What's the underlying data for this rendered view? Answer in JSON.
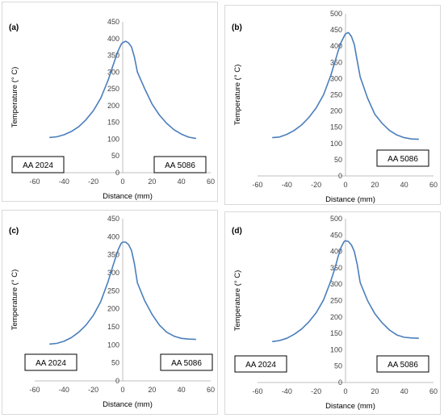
{
  "chart_data": [
    {
      "type": "line",
      "panel_label": "(a)",
      "xlabel": "Distance (mm)",
      "ylabel": "Temperature (° C)",
      "xlim": [
        -60,
        60
      ],
      "ylim": [
        0,
        450
      ],
      "xticks": [
        -60,
        -40,
        -20,
        0,
        20,
        40,
        60
      ],
      "yticks": [
        0,
        50,
        100,
        150,
        200,
        250,
        300,
        350,
        400,
        450
      ],
      "left_annotation": "AA 2024",
      "right_annotation": "AA 5086",
      "x": [
        -50,
        -45,
        -40,
        -35,
        -30,
        -25,
        -20,
        -15,
        -10,
        -7,
        -5,
        -3,
        -1,
        0,
        2,
        4,
        6,
        8,
        10,
        15,
        20,
        25,
        30,
        35,
        40,
        45,
        50
      ],
      "y": [
        105,
        107,
        113,
        123,
        137,
        158,
        185,
        222,
        275,
        315,
        340,
        365,
        383,
        388,
        392,
        387,
        375,
        345,
        300,
        250,
        205,
        172,
        147,
        128,
        115,
        106,
        102
      ]
    },
    {
      "type": "line",
      "panel_label": "(b)",
      "xlabel": "Distance (mm)",
      "ylabel": "Temperature (° C)",
      "xlim": [
        -60,
        60
      ],
      "ylim": [
        0,
        500
      ],
      "xticks": [
        -60,
        -40,
        -20,
        0,
        20,
        40,
        60
      ],
      "yticks": [
        0,
        50,
        100,
        150,
        200,
        250,
        300,
        350,
        400,
        450,
        500
      ],
      "left_annotation": "",
      "right_annotation": "AA 5086",
      "x": [
        -50,
        -45,
        -40,
        -35,
        -30,
        -25,
        -20,
        -15,
        -10,
        -7,
        -5,
        -3,
        -1,
        0,
        2,
        4,
        6,
        8,
        10,
        15,
        20,
        25,
        30,
        35,
        40,
        45,
        50
      ],
      "y": [
        118,
        120,
        128,
        140,
        157,
        180,
        210,
        250,
        310,
        355,
        385,
        412,
        430,
        438,
        442,
        430,
        405,
        355,
        305,
        240,
        190,
        162,
        140,
        126,
        118,
        114,
        113
      ]
    },
    {
      "type": "line",
      "panel_label": "(c)",
      "xlabel": "Distance (mm)",
      "ylabel": "Temperature (° C)",
      "xlim": [
        -60,
        60
      ],
      "ylim": [
        0,
        450
      ],
      "xticks": [
        -60,
        -40,
        -20,
        0,
        20,
        40,
        60
      ],
      "yticks": [
        0,
        50,
        100,
        150,
        200,
        250,
        300,
        350,
        400,
        450
      ],
      "left_annotation": "AA 2024",
      "right_annotation": "AA 5086",
      "x": [
        -50,
        -45,
        -40,
        -35,
        -30,
        -25,
        -20,
        -15,
        -10,
        -7,
        -5,
        -3,
        -1,
        0,
        2,
        4,
        6,
        8,
        10,
        15,
        20,
        25,
        30,
        35,
        40,
        45,
        50
      ],
      "y": [
        102,
        104,
        110,
        120,
        135,
        155,
        182,
        220,
        275,
        315,
        340,
        365,
        382,
        385,
        385,
        378,
        362,
        325,
        272,
        222,
        185,
        155,
        135,
        124,
        118,
        116,
        115
      ]
    },
    {
      "type": "line",
      "panel_label": "(d)",
      "xlabel": "Distance (mm)",
      "ylabel": "Temperature (° C)",
      "xlim": [
        -60,
        60
      ],
      "ylim": [
        0,
        500
      ],
      "xticks": [
        -60,
        -40,
        -20,
        0,
        20,
        40,
        60
      ],
      "yticks": [
        0,
        50,
        100,
        150,
        200,
        250,
        300,
        350,
        400,
        450,
        500
      ],
      "left_annotation": "AA 2024",
      "right_annotation": "AA 5086",
      "x": [
        -50,
        -45,
        -40,
        -35,
        -30,
        -25,
        -20,
        -15,
        -10,
        -7,
        -5,
        -3,
        -1,
        0,
        2,
        4,
        6,
        8,
        10,
        15,
        20,
        25,
        30,
        35,
        40,
        45,
        50
      ],
      "y": [
        125,
        128,
        135,
        147,
        163,
        185,
        213,
        252,
        310,
        352,
        385,
        413,
        430,
        433,
        430,
        420,
        400,
        360,
        305,
        250,
        210,
        182,
        160,
        145,
        138,
        136,
        135
      ]
    }
  ]
}
